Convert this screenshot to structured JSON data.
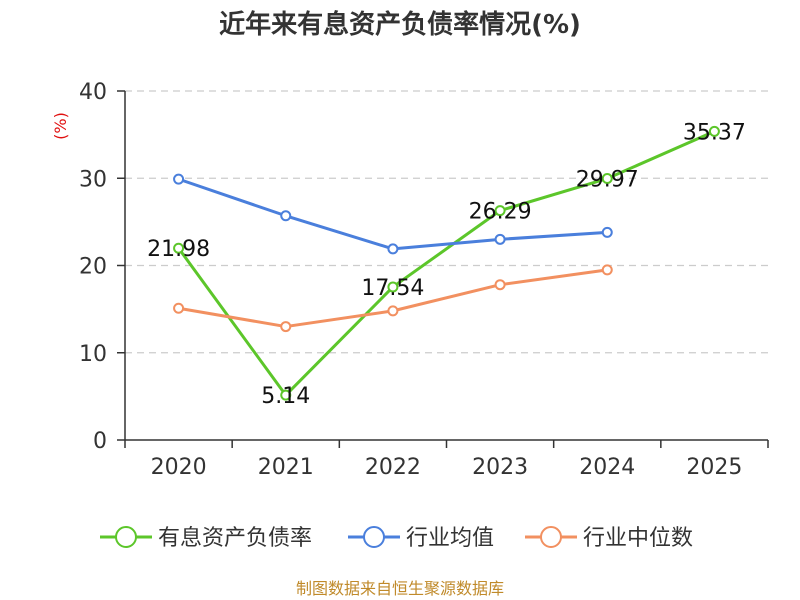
{
  "chart_data": {
    "type": "line",
    "title": "近年来有息资产负债率情况(%)",
    "ylabel": "(%)",
    "xlabel": "",
    "categories": [
      "2020",
      "2021",
      "2022",
      "2023",
      "2024",
      "2025"
    ],
    "ylim": [
      0,
      40
    ],
    "yticks": [
      0,
      10,
      20,
      30,
      40
    ],
    "grid": true,
    "legend_position": "bottom",
    "series": [
      {
        "name": "有息资产负债率",
        "color": "#5cc62a",
        "values": [
          21.98,
          5.14,
          17.54,
          26.29,
          29.97,
          35.37
        ],
        "labels": [
          "21.98",
          "5.14",
          "17.54",
          "26.29",
          "29.97",
          "35.37"
        ]
      },
      {
        "name": "行业均值",
        "color": "#4a7fdc",
        "values": [
          29.9,
          25.7,
          21.9,
          23.0,
          23.8,
          null
        ]
      },
      {
        "name": "行业中位数",
        "color": "#f29060",
        "values": [
          15.1,
          13.0,
          14.8,
          17.8,
          19.5,
          null
        ]
      }
    ]
  },
  "footer": {
    "source": "制图数据来自恒生聚源数据库"
  }
}
